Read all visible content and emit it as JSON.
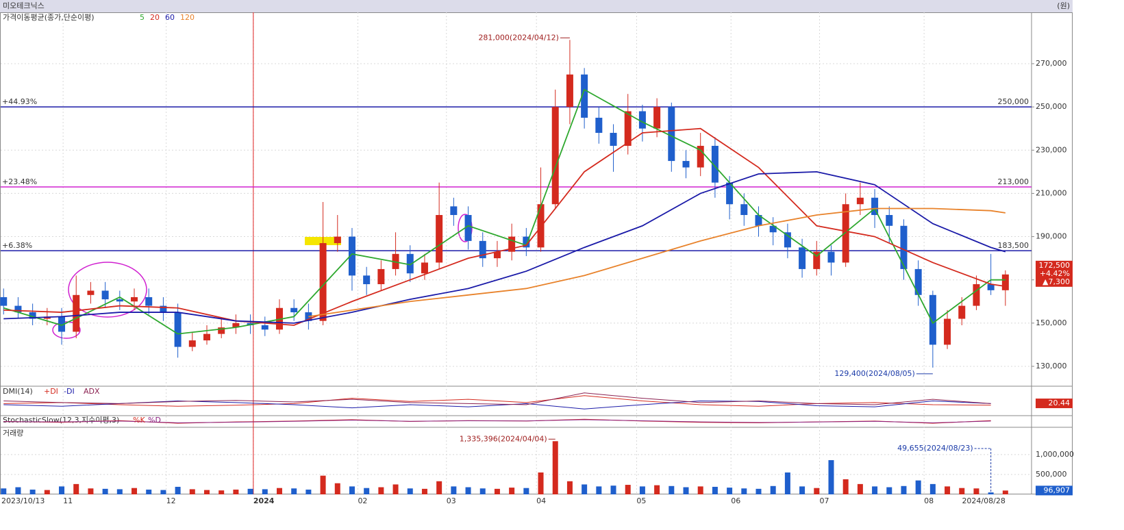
{
  "header": {
    "title": "미오테크닉스",
    "unit": "(원)"
  },
  "chart_data": [
    {
      "type": "candlestick",
      "title": "가격이동평균(종가,단순이평)",
      "up_color": "#d42a1e",
      "down_color": "#1f5fcc",
      "open": [
        162000,
        158000,
        155000,
        152000,
        153000,
        146000,
        163000,
        165000,
        161000,
        160000,
        162000,
        158000,
        155000,
        139000,
        142000,
        145000,
        148000,
        150000,
        149000,
        147000,
        157000,
        155000,
        151000,
        187000,
        190000,
        172000,
        168000,
        175000,
        182000,
        173000,
        178000,
        204000,
        200000,
        188000,
        180000,
        183000,
        190000,
        185000,
        205000,
        250000,
        265000,
        245000,
        238000,
        232000,
        248000,
        240000,
        250000,
        225000,
        222000,
        232000,
        215000,
        205000,
        200000,
        195000,
        192000,
        185000,
        175000,
        183000,
        178000,
        205000,
        208000,
        200000,
        195000,
        175000,
        163000,
        140000,
        152000,
        158000,
        168000,
        165200
      ],
      "high": [
        166000,
        162000,
        159000,
        157000,
        157000,
        172000,
        169000,
        169000,
        165000,
        166000,
        166000,
        162000,
        159000,
        146000,
        149000,
        152000,
        154000,
        154000,
        153000,
        161000,
        161000,
        159000,
        206000,
        200000,
        194000,
        176000,
        179000,
        192000,
        186000,
        182000,
        215000,
        208000,
        204000,
        192000,
        188000,
        196000,
        194000,
        222000,
        258000,
        281000,
        268000,
        250000,
        242000,
        256000,
        251000,
        254000,
        252000,
        230000,
        238000,
        236000,
        218000,
        210000,
        204000,
        199000,
        196000,
        189000,
        188000,
        186000,
        210000,
        215000,
        212000,
        204000,
        198000,
        179000,
        165000,
        156000,
        162000,
        172000,
        182000,
        174400
      ],
      "low": [
        154000,
        152000,
        149000,
        149000,
        140000,
        143000,
        159000,
        157000,
        156000,
        156000,
        154000,
        151000,
        134000,
        137000,
        140000,
        143000,
        145000,
        145000,
        144000,
        145000,
        151000,
        147000,
        149000,
        183000,
        165000,
        163000,
        165000,
        172000,
        169000,
        170000,
        175000,
        195000,
        184000,
        176000,
        176000,
        179000,
        181000,
        183000,
        203000,
        242000,
        240000,
        233000,
        220000,
        228000,
        234000,
        236000,
        220000,
        217000,
        218000,
        208000,
        198000,
        195000,
        190000,
        186000,
        180000,
        171000,
        172000,
        172000,
        176000,
        200000,
        194000,
        187000,
        170000,
        158000,
        129400,
        138000,
        149000,
        156000,
        163000,
        158000
      ],
      "close": [
        158000,
        155000,
        152000,
        153000,
        146000,
        163000,
        165000,
        161000,
        160000,
        162000,
        158000,
        155000,
        139000,
        142000,
        145000,
        148000,
        150000,
        149000,
        147000,
        157000,
        155000,
        151000,
        187000,
        190000,
        172000,
        168000,
        175000,
        182000,
        173000,
        178000,
        200000,
        200000,
        188000,
        180000,
        183000,
        190000,
        185000,
        205000,
        250000,
        265000,
        245000,
        238000,
        232000,
        248000,
        240000,
        250000,
        225000,
        222000,
        232000,
        215000,
        205000,
        200000,
        195000,
        192000,
        185000,
        175000,
        183000,
        178000,
        205000,
        208000,
        200000,
        195000,
        175000,
        163000,
        140000,
        152000,
        158000,
        168000,
        165200,
        172500
      ],
      "xlim": [
        -0.2,
        70.8
      ],
      "xticks": [
        {
          "value": 0,
          "label": "2023/10/13"
        },
        {
          "value": 4.1,
          "label": "11"
        },
        {
          "value": 11.2,
          "label": "12"
        },
        {
          "value": 17.2,
          "label": "2024"
        },
        {
          "value": 24.4,
          "label": "02"
        },
        {
          "value": 30.5,
          "label": "03"
        },
        {
          "value": 36.7,
          "label": "04"
        },
        {
          "value": 43.6,
          "label": "05"
        },
        {
          "value": 50.1,
          "label": "06"
        },
        {
          "value": 56.2,
          "label": "07"
        },
        {
          "value": 63.4,
          "label": "08"
        },
        {
          "value": 69,
          "label": "2024/08/28"
        }
      ],
      "ylim": [
        121440,
        293760
      ],
      "yticks": [
        {
          "value": 130000,
          "label": "130,000"
        },
        {
          "value": 150000,
          "label": "150,000"
        },
        {
          "value": 170000,
          "label": "170,000"
        },
        {
          "value": 190000,
          "label": "190,000"
        },
        {
          "value": 210000,
          "label": "210,000"
        },
        {
          "value": 230000,
          "label": "230,000"
        },
        {
          "value": 250000,
          "label": "250,000"
        },
        {
          "value": 270000,
          "label": "270,000"
        }
      ],
      "hlines": [
        {
          "value": 250000,
          "label": "250,000",
          "pct": "+44.93%",
          "color": "#1a1aa8"
        },
        {
          "value": 213000,
          "label": "213,000",
          "pct": "+23.48%",
          "color": "#d020d0"
        },
        {
          "value": 183500,
          "label": "183,500",
          "pct": "+6.38%",
          "color": "#1a1aa8"
        }
      ],
      "ma_series": [
        {
          "name": "5",
          "color": "#2ea82e",
          "x": [
            0,
            4,
            8,
            12,
            16,
            20,
            24,
            28,
            32,
            36,
            40,
            44,
            48,
            52,
            56,
            60,
            64,
            68,
            69
          ],
          "values": [
            157000,
            149000,
            162000,
            145000,
            148000,
            153000,
            182000,
            177000,
            195000,
            186000,
            258000,
            243000,
            230000,
            200000,
            181000,
            203000,
            150000,
            170000,
            170000
          ]
        },
        {
          "name": "20",
          "color": "#d42a1e",
          "x": [
            0,
            4,
            8,
            12,
            16,
            20,
            24,
            28,
            32,
            36,
            40,
            44,
            48,
            52,
            56,
            60,
            64,
            68,
            69
          ],
          "values": [
            156000,
            155000,
            158000,
            157000,
            151000,
            149000,
            160000,
            170000,
            180000,
            186000,
            220000,
            238000,
            240000,
            222000,
            195000,
            190000,
            178000,
            168000,
            167000
          ]
        },
        {
          "name": "60",
          "color": "#1a1aa8",
          "x": [
            0,
            4,
            8,
            12,
            16,
            20,
            24,
            28,
            32,
            36,
            40,
            44,
            48,
            52,
            56,
            60,
            64,
            68,
            69
          ],
          "values": [
            152000,
            153000,
            155000,
            155000,
            151000,
            150000,
            155000,
            161000,
            166000,
            174000,
            185000,
            195000,
            210000,
            219000,
            220000,
            214000,
            196000,
            185000,
            183000
          ]
        },
        {
          "name": "120",
          "color": "#e8822a",
          "x": [
            21,
            24,
            28,
            32,
            36,
            40,
            44,
            48,
            52,
            56,
            60,
            64,
            68,
            69
          ],
          "values": [
            153000,
            156000,
            160000,
            163000,
            166000,
            172000,
            180000,
            188000,
            195000,
            200000,
            203000,
            203000,
            202000,
            201000
          ]
        }
      ],
      "high_label": {
        "value": 281000,
        "label": "281,000(2024/04/12)"
      },
      "low_label": {
        "value": 129400,
        "label": "129,400(2024/08/05)"
      },
      "last": {
        "value": 172500,
        "label": "172,500",
        "change_pct": "+4.42%",
        "change": "▲7,300"
      }
    },
    {
      "type": "line",
      "title": "DMI(14)",
      "ylim": [
        0,
        50
      ],
      "series": [
        {
          "name": "+DI",
          "color": "#d42a1e",
          "x": [
            0,
            4,
            8,
            12,
            16,
            20,
            24,
            28,
            32,
            36,
            40,
            44,
            48,
            52,
            56,
            60,
            64,
            68
          ],
          "values": [
            20,
            22,
            18,
            15,
            17,
            20,
            30,
            24,
            28,
            22,
            35,
            25,
            18,
            15,
            20,
            22,
            18,
            17
          ]
        },
        {
          "name": "-DI",
          "color": "#1a1aa8",
          "x": [
            0,
            4,
            8,
            12,
            16,
            20,
            24,
            28,
            32,
            36,
            40,
            44,
            48,
            52,
            56,
            60,
            64,
            68
          ],
          "values": [
            18,
            15,
            20,
            25,
            22,
            18,
            12,
            18,
            14,
            20,
            10,
            18,
            25,
            24,
            16,
            14,
            25,
            20
          ]
        },
        {
          "name": "ADX",
          "color": "#8a2050",
          "x": [
            0,
            4,
            8,
            12,
            16,
            20,
            24,
            28,
            32,
            36,
            40,
            44,
            48,
            52,
            56,
            60,
            64,
            68
          ],
          "values": [
            25,
            22,
            20,
            24,
            26,
            23,
            28,
            22,
            20,
            18,
            40,
            30,
            22,
            25,
            20,
            18,
            28,
            20
          ]
        }
      ],
      "last": {
        "value": 20.44,
        "label": "20.44"
      }
    },
    {
      "type": "line",
      "title": "StochasticSlow(12,3,지수이평,3)",
      "ylim": [
        0,
        100
      ],
      "series": [
        {
          "name": "%K",
          "color": "#d42a1e",
          "x": [
            0,
            4,
            8,
            12,
            16,
            20,
            24,
            28,
            32,
            36,
            40,
            44,
            48,
            52,
            56,
            60,
            64,
            68
          ],
          "values": [
            50,
            40,
            60,
            30,
            45,
            55,
            70,
            50,
            60,
            55,
            75,
            55,
            40,
            35,
            45,
            55,
            30,
            60
          ]
        },
        {
          "name": "%D",
          "color": "#8a2080",
          "x": [
            0,
            4,
            8,
            12,
            16,
            20,
            24,
            28,
            32,
            36,
            40,
            44,
            48,
            52,
            56,
            60,
            64,
            68
          ],
          "values": [
            48,
            45,
            55,
            35,
            42,
            52,
            65,
            52,
            58,
            56,
            70,
            58,
            45,
            38,
            44,
            52,
            35,
            55
          ]
        }
      ]
    },
    {
      "type": "bar",
      "title": "거래량",
      "ylim": [
        0,
        1650000
      ],
      "yticks": [
        {
          "value": 500000,
          "label": "500,000"
        },
        {
          "value": 1000000,
          "label": "1,000,000"
        }
      ],
      "values": [
        150000,
        180000,
        120000,
        110000,
        200000,
        260000,
        150000,
        140000,
        130000,
        160000,
        120000,
        110000,
        190000,
        130000,
        110000,
        100000,
        120000,
        140000,
        130000,
        160000,
        150000,
        120000,
        470000,
        280000,
        200000,
        160000,
        180000,
        250000,
        150000,
        140000,
        330000,
        200000,
        180000,
        150000,
        140000,
        170000,
        160000,
        550000,
        1335396,
        330000,
        250000,
        200000,
        220000,
        240000,
        200000,
        230000,
        210000,
        180000,
        200000,
        190000,
        170000,
        150000,
        140000,
        210000,
        550000,
        200000,
        160000,
        860000,
        380000,
        260000,
        200000,
        180000,
        210000,
        350000,
        260000,
        200000,
        160000,
        150000,
        49655,
        96907
      ],
      "high_label": {
        "value": 1335396,
        "label": "1,335,396(2024/04/04)"
      },
      "low_label": {
        "value": 49655,
        "label": "49,655(2024/08/23)"
      },
      "last": {
        "value": 96907,
        "label": "96,907"
      }
    }
  ]
}
